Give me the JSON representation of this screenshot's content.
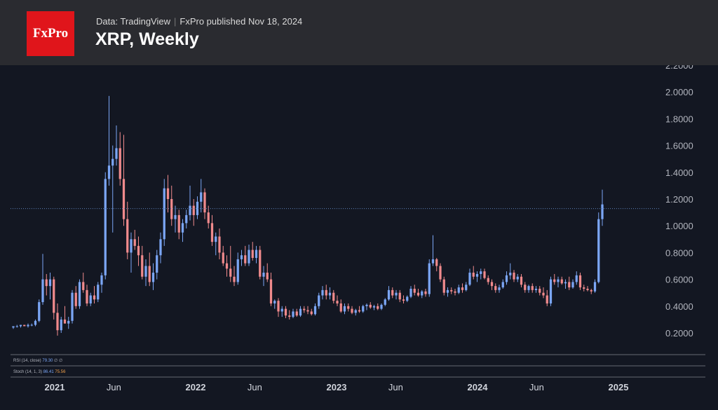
{
  "header": {
    "logo_text": "FxPro",
    "source_label": "Data: TradingView",
    "published_label": "FxPro published Nov 18, 2024",
    "title": "XRP, Weekly"
  },
  "indicators": {
    "rsi": {
      "label": "RSI (14, close)",
      "value": "79.30",
      "extra": "∅ ∅"
    },
    "stoch": {
      "label": "Stoch (14, 1, 3)",
      "k": "86.41",
      "d": "75.56"
    }
  },
  "colors": {
    "up": "#7ba6f5",
    "down": "#f08a8c",
    "background": "#131722",
    "header": "#2a2b30",
    "logo_red": "#e0151b"
  },
  "chart_data": {
    "type": "candlestick",
    "title": "XRP, Weekly",
    "ylim": [
      0.1,
      2.2
    ],
    "y_ticks": [
      "0.2000",
      "0.4000",
      "0.6000",
      "0.8000",
      "1.0000",
      "1.2000",
      "1.4000",
      "1.6000",
      "1.8000",
      "2.0000",
      "2.2000"
    ],
    "x_ticks": [
      {
        "label": "2021",
        "major": true,
        "t": 2021.0
      },
      {
        "label": "Jun",
        "major": false,
        "t": 2021.42
      },
      {
        "label": "2022",
        "major": true,
        "t": 2022.0
      },
      {
        "label": "Jun",
        "major": false,
        "t": 2022.42
      },
      {
        "label": "2023",
        "major": true,
        "t": 2023.0
      },
      {
        "label": "Jun",
        "major": false,
        "t": 2023.42
      },
      {
        "label": "2024",
        "major": true,
        "t": 2024.0
      },
      {
        "label": "Jun",
        "major": false,
        "t": 2024.42
      },
      {
        "label": "2025",
        "major": true,
        "t": 2025.0
      }
    ],
    "last_price": 1.16,
    "points": [
      [
        0.24,
        0.25,
        0.23,
        0.25
      ],
      [
        0.25,
        0.26,
        0.24,
        0.25
      ],
      [
        0.25,
        0.26,
        0.24,
        0.26
      ],
      [
        0.26,
        0.26,
        0.25,
        0.25
      ],
      [
        0.25,
        0.27,
        0.24,
        0.26
      ],
      [
        0.26,
        0.27,
        0.25,
        0.26
      ],
      [
        0.26,
        0.3,
        0.25,
        0.29
      ],
      [
        0.29,
        0.45,
        0.28,
        0.43
      ],
      [
        0.43,
        0.79,
        0.41,
        0.6
      ],
      [
        0.6,
        0.64,
        0.48,
        0.55
      ],
      [
        0.55,
        0.65,
        0.45,
        0.6
      ],
      [
        0.6,
        0.62,
        0.3,
        0.35
      ],
      [
        0.35,
        0.42,
        0.18,
        0.22
      ],
      [
        0.22,
        0.32,
        0.2,
        0.3
      ],
      [
        0.3,
        0.4,
        0.27,
        0.27
      ],
      [
        0.27,
        0.32,
        0.23,
        0.29
      ],
      [
        0.29,
        0.52,
        0.27,
        0.5
      ],
      [
        0.5,
        0.55,
        0.38,
        0.4
      ],
      [
        0.4,
        0.6,
        0.38,
        0.58
      ],
      [
        0.58,
        0.65,
        0.5,
        0.52
      ],
      [
        0.52,
        0.56,
        0.4,
        0.42
      ],
      [
        0.42,
        0.5,
        0.4,
        0.48
      ],
      [
        0.48,
        0.55,
        0.42,
        0.45
      ],
      [
        0.45,
        0.58,
        0.43,
        0.56
      ],
      [
        0.56,
        0.65,
        0.5,
        0.63
      ],
      [
        0.63,
        1.4,
        0.6,
        1.35
      ],
      [
        1.35,
        1.97,
        1.3,
        1.45
      ],
      [
        1.45,
        1.6,
        0.95,
        1.5
      ],
      [
        1.5,
        1.75,
        1.45,
        1.58
      ],
      [
        1.58,
        1.7,
        1.3,
        1.35
      ],
      [
        1.35,
        1.68,
        1.0,
        1.05
      ],
      [
        1.05,
        1.18,
        0.75,
        0.8
      ],
      [
        0.8,
        0.95,
        0.65,
        0.9
      ],
      [
        0.9,
        0.97,
        0.82,
        0.85
      ],
      [
        0.85,
        0.92,
        0.7,
        0.78
      ],
      [
        0.78,
        0.85,
        0.6,
        0.62
      ],
      [
        0.62,
        0.75,
        0.55,
        0.7
      ],
      [
        0.7,
        0.8,
        0.55,
        0.58
      ],
      [
        0.58,
        0.72,
        0.52,
        0.65
      ],
      [
        0.65,
        0.82,
        0.6,
        0.78
      ],
      [
        0.78,
        0.95,
        0.72,
        0.9
      ],
      [
        0.9,
        1.35,
        0.85,
        1.28
      ],
      [
        1.28,
        1.38,
        1.1,
        1.2
      ],
      [
        1.2,
        1.3,
        1.0,
        1.05
      ],
      [
        1.05,
        1.15,
        0.95,
        1.08
      ],
      [
        1.08,
        1.12,
        0.9,
        0.95
      ],
      [
        0.95,
        1.05,
        0.88,
        1.02
      ],
      [
        1.02,
        1.12,
        0.98,
        1.08
      ],
      [
        1.08,
        1.3,
        1.04,
        1.15
      ],
      [
        1.15,
        1.2,
        1.0,
        1.08
      ],
      [
        1.08,
        1.22,
        1.05,
        1.18
      ],
      [
        1.18,
        1.35,
        1.1,
        1.25
      ],
      [
        1.25,
        1.28,
        1.05,
        1.1
      ],
      [
        1.1,
        1.15,
        0.98,
        1.02
      ],
      [
        1.02,
        1.08,
        0.85,
        0.88
      ],
      [
        0.88,
        0.95,
        0.78,
        0.92
      ],
      [
        0.92,
        0.98,
        0.75,
        0.8
      ],
      [
        0.8,
        0.85,
        0.7,
        0.72
      ],
      [
        0.72,
        0.78,
        0.62,
        0.68
      ],
      [
        0.68,
        0.85,
        0.58,
        0.62
      ],
      [
        0.62,
        0.7,
        0.55,
        0.58
      ],
      [
        0.58,
        0.8,
        0.56,
        0.75
      ],
      [
        0.75,
        0.82,
        0.7,
        0.78
      ],
      [
        0.78,
        0.85,
        0.7,
        0.72
      ],
      [
        0.72,
        0.86,
        0.7,
        0.82
      ],
      [
        0.82,
        0.88,
        0.74,
        0.76
      ],
      [
        0.76,
        0.85,
        0.72,
        0.82
      ],
      [
        0.82,
        0.85,
        0.6,
        0.62
      ],
      [
        0.62,
        0.7,
        0.55,
        0.65
      ],
      [
        0.65,
        0.72,
        0.58,
        0.6
      ],
      [
        0.6,
        0.65,
        0.4,
        0.42
      ],
      [
        0.42,
        0.45,
        0.38,
        0.44
      ],
      [
        0.44,
        0.46,
        0.32,
        0.36
      ],
      [
        0.36,
        0.4,
        0.32,
        0.38
      ],
      [
        0.38,
        0.4,
        0.31,
        0.33
      ],
      [
        0.33,
        0.37,
        0.3,
        0.32
      ],
      [
        0.32,
        0.38,
        0.31,
        0.36
      ],
      [
        0.36,
        0.38,
        0.32,
        0.33
      ],
      [
        0.33,
        0.4,
        0.32,
        0.38
      ],
      [
        0.38,
        0.4,
        0.35,
        0.37
      ],
      [
        0.37,
        0.4,
        0.34,
        0.36
      ],
      [
        0.36,
        0.38,
        0.33,
        0.34
      ],
      [
        0.34,
        0.42,
        0.33,
        0.4
      ],
      [
        0.4,
        0.5,
        0.38,
        0.48
      ],
      [
        0.48,
        0.55,
        0.45,
        0.52
      ],
      [
        0.52,
        0.56,
        0.45,
        0.48
      ],
      [
        0.48,
        0.54,
        0.45,
        0.5
      ],
      [
        0.5,
        0.52,
        0.42,
        0.44
      ],
      [
        0.44,
        0.48,
        0.4,
        0.42
      ],
      [
        0.42,
        0.45,
        0.35,
        0.36
      ],
      [
        0.36,
        0.42,
        0.34,
        0.4
      ],
      [
        0.4,
        0.42,
        0.36,
        0.38
      ],
      [
        0.38,
        0.4,
        0.34,
        0.35
      ],
      [
        0.35,
        0.38,
        0.33,
        0.37
      ],
      [
        0.37,
        0.4,
        0.35,
        0.36
      ],
      [
        0.36,
        0.41,
        0.35,
        0.4
      ],
      [
        0.4,
        0.42,
        0.37,
        0.41
      ],
      [
        0.41,
        0.43,
        0.38,
        0.39
      ],
      [
        0.39,
        0.41,
        0.37,
        0.4
      ],
      [
        0.4,
        0.42,
        0.37,
        0.38
      ],
      [
        0.38,
        0.42,
        0.37,
        0.41
      ],
      [
        0.41,
        0.46,
        0.4,
        0.45
      ],
      [
        0.45,
        0.55,
        0.44,
        0.52
      ],
      [
        0.52,
        0.54,
        0.46,
        0.48
      ],
      [
        0.48,
        0.52,
        0.45,
        0.5
      ],
      [
        0.5,
        0.52,
        0.43,
        0.45
      ],
      [
        0.45,
        0.48,
        0.42,
        0.44
      ],
      [
        0.44,
        0.48,
        0.43,
        0.47
      ],
      [
        0.47,
        0.55,
        0.46,
        0.53
      ],
      [
        0.53,
        0.56,
        0.48,
        0.5
      ],
      [
        0.5,
        0.53,
        0.47,
        0.48
      ],
      [
        0.48,
        0.52,
        0.46,
        0.51
      ],
      [
        0.51,
        0.53,
        0.47,
        0.49
      ],
      [
        0.49,
        0.75,
        0.47,
        0.72
      ],
      [
        0.72,
        0.93,
        0.7,
        0.75
      ],
      [
        0.75,
        0.76,
        0.66,
        0.7
      ],
      [
        0.7,
        0.72,
        0.58,
        0.6
      ],
      [
        0.6,
        0.62,
        0.48,
        0.5
      ],
      [
        0.5,
        0.54,
        0.47,
        0.52
      ],
      [
        0.52,
        0.54,
        0.49,
        0.51
      ],
      [
        0.51,
        0.53,
        0.48,
        0.5
      ],
      [
        0.5,
        0.56,
        0.49,
        0.54
      ],
      [
        0.54,
        0.57,
        0.5,
        0.52
      ],
      [
        0.52,
        0.58,
        0.51,
        0.56
      ],
      [
        0.56,
        0.68,
        0.55,
        0.65
      ],
      [
        0.65,
        0.7,
        0.6,
        0.62
      ],
      [
        0.62,
        0.66,
        0.58,
        0.64
      ],
      [
        0.64,
        0.68,
        0.6,
        0.66
      ],
      [
        0.66,
        0.68,
        0.6,
        0.61
      ],
      [
        0.61,
        0.63,
        0.56,
        0.58
      ],
      [
        0.58,
        0.6,
        0.52,
        0.55
      ],
      [
        0.55,
        0.57,
        0.5,
        0.52
      ],
      [
        0.52,
        0.56,
        0.5,
        0.54
      ],
      [
        0.54,
        0.6,
        0.53,
        0.58
      ],
      [
        0.58,
        0.66,
        0.56,
        0.63
      ],
      [
        0.63,
        0.72,
        0.6,
        0.65
      ],
      [
        0.65,
        0.67,
        0.58,
        0.6
      ],
      [
        0.6,
        0.64,
        0.58,
        0.62
      ],
      [
        0.62,
        0.64,
        0.54,
        0.56
      ],
      [
        0.56,
        0.58,
        0.5,
        0.52
      ],
      [
        0.52,
        0.56,
        0.5,
        0.55
      ],
      [
        0.55,
        0.57,
        0.5,
        0.52
      ],
      [
        0.52,
        0.55,
        0.5,
        0.53
      ],
      [
        0.53,
        0.55,
        0.48,
        0.5
      ],
      [
        0.5,
        0.54,
        0.46,
        0.48
      ],
      [
        0.48,
        0.52,
        0.4,
        0.42
      ],
      [
        0.42,
        0.62,
        0.4,
        0.6
      ],
      [
        0.6,
        0.64,
        0.56,
        0.58
      ],
      [
        0.58,
        0.62,
        0.54,
        0.6
      ],
      [
        0.6,
        0.62,
        0.56,
        0.57
      ],
      [
        0.57,
        0.6,
        0.53,
        0.58
      ],
      [
        0.58,
        0.62,
        0.52,
        0.54
      ],
      [
        0.54,
        0.6,
        0.53,
        0.58
      ],
      [
        0.58,
        0.66,
        0.56,
        0.63
      ],
      [
        0.63,
        0.65,
        0.52,
        0.54
      ],
      [
        0.54,
        0.56,
        0.51,
        0.53
      ],
      [
        0.53,
        0.55,
        0.51,
        0.52
      ],
      [
        0.52,
        0.53,
        0.49,
        0.51
      ],
      [
        0.51,
        0.6,
        0.5,
        0.58
      ],
      [
        0.58,
        1.1,
        0.57,
        1.05
      ],
      [
        1.05,
        1.27,
        1.0,
        1.16
      ]
    ]
  }
}
